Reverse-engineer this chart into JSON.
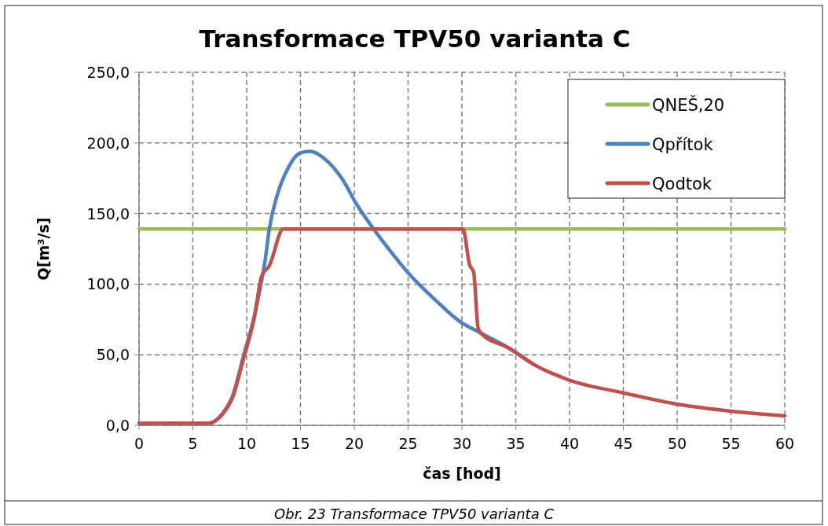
{
  "chart_data": {
    "type": "line",
    "title": "Transformace TPV50 varianta C",
    "xlabel": "čas [hod]",
    "ylabel": "Q[m³/s]",
    "annotations": [
      "Obr. 23 Transformace TPV50 varianta C"
    ],
    "xlim": [
      0,
      60
    ],
    "xticks": [
      0,
      5,
      10,
      15,
      20,
      25,
      30,
      35,
      40,
      45,
      50,
      55,
      60
    ],
    "ylim": [
      0,
      250
    ],
    "yticks": [
      {
        "value": 0,
        "label": "0,0"
      },
      {
        "value": 50,
        "label": "50,0"
      },
      {
        "value": 100,
        "label": "100,0"
      },
      {
        "value": 150,
        "label": "150,0"
      },
      {
        "value": 200,
        "label": "200,0"
      },
      {
        "value": 250,
        "label": "250,0"
      }
    ],
    "grid": true,
    "legend": "top right",
    "marker": "none",
    "line_style": "solid",
    "series": [
      {
        "name": "QNEŠ,20",
        "color": "#9bbb59",
        "x": [
          0,
          60
        ],
        "values": [
          139,
          139
        ]
      },
      {
        "name": "Qpřítok",
        "color": "#4f81bd",
        "x": [
          0,
          6.5,
          7.7,
          8.7,
          9.7,
          10.7,
          11.2,
          11.7,
          12.1,
          12.8,
          13.9,
          15,
          15.9,
          17.2,
          19,
          20.1,
          21.9,
          23.6,
          25,
          27.5,
          29.9,
          31.6,
          34.3,
          36.7
        ],
        "values": [
          1.5,
          1.6,
          7.8,
          21,
          49,
          77,
          95,
          116,
          139,
          162,
          183,
          193,
          194,
          189,
          173,
          158,
          138,
          121,
          108,
          89,
          73,
          66,
          55,
          43
        ]
      },
      {
        "name": "Qodtok",
        "color": "#c0504d",
        "x": [
          0,
          6.5,
          7.7,
          8.7,
          9.7,
          10.7,
          11.4,
          12.1,
          13.4,
          30.1,
          30.7,
          31.1,
          31.5,
          31.8,
          34.3,
          36.7,
          40,
          45,
          50,
          55,
          60
        ],
        "values": [
          1.5,
          1.6,
          7.5,
          20,
          47,
          76,
          106,
          113,
          139,
          139,
          114,
          108,
          69,
          65,
          55,
          43,
          32,
          23,
          15,
          10,
          6.7
        ]
      }
    ]
  }
}
